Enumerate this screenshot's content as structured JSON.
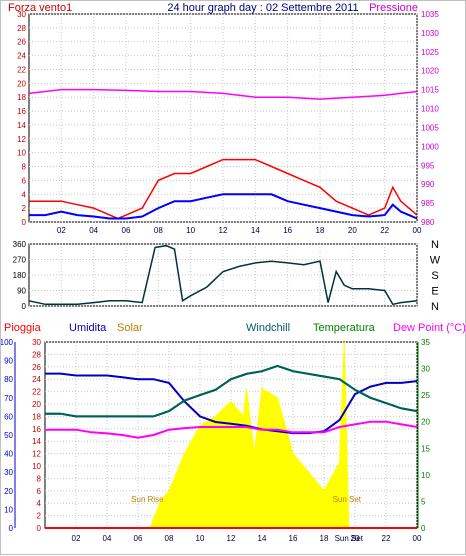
{
  "header": {
    "title": "24 hour graph day : 02 Settembre 2011",
    "left_label": "Forza vento1",
    "right_label": "Pressione"
  },
  "legend": {
    "pioggia": "Pioggia",
    "umidita": "Umidita",
    "solar": "Solar",
    "windchill": "Windchill",
    "temperatura": "Temperatura",
    "dewpoint": "Dew Point (°C)"
  },
  "direction_labels": [
    "N",
    "W",
    "S",
    "E",
    "N"
  ],
  "colors": {
    "wind_gust": "#ff0000",
    "wind_avg": "#0000ff",
    "pressure": "#ff00ff",
    "direction": "#003333",
    "pioggia": "#ff0000",
    "umidita": "#0000c0",
    "solar": "#ffff00",
    "solar_text": "#c08000",
    "windchill": "#006060",
    "temperatura": "#008000",
    "dewpoint": "#ff00ff",
    "axis_left": "#cc0000",
    "axis_right": "#cc00cc",
    "axis_hum": "#0000cc",
    "axis_temp": "#008000"
  },
  "chart_data": [
    {
      "type": "line",
      "title": "24 hour graph day : 02 Settembre 2011",
      "xlabel": "",
      "x_ticks": [
        "02",
        "04",
        "06",
        "08",
        "10",
        "12",
        "14",
        "16",
        "18",
        "20",
        "22",
        "00"
      ],
      "ylabel_left": "Forza vento1",
      "ylabel_right": "Pressione",
      "ylim_left": [
        0,
        30
      ],
      "ylim_right": [
        980,
        1035
      ],
      "yticks_left": [
        0,
        2,
        4,
        6,
        8,
        10,
        12,
        14,
        16,
        18,
        20,
        22,
        24,
        26,
        28,
        30
      ],
      "yticks_right": [
        980,
        985,
        990,
        995,
        1000,
        1005,
        1010,
        1015,
        1020,
        1025,
        1030,
        1035
      ],
      "grid": true,
      "series": [
        {
          "axis": "left",
          "values": [
            [
              0,
              3
            ],
            [
              1,
              3
            ],
            [
              2,
              3
            ],
            [
              3,
              2.5
            ],
            [
              4,
              2
            ],
            [
              5,
              1
            ],
            [
              5.5,
              0.5
            ],
            [
              6,
              1
            ],
            [
              7,
              2
            ],
            [
              7.5,
              4
            ],
            [
              8,
              6
            ],
            [
              9,
              7
            ],
            [
              10,
              7
            ],
            [
              11,
              8
            ],
            [
              12,
              9
            ],
            [
              13,
              9
            ],
            [
              14,
              9
            ],
            [
              15,
              8
            ],
            [
              16,
              7
            ],
            [
              17,
              6
            ],
            [
              18,
              5
            ],
            [
              19,
              3
            ],
            [
              20,
              2
            ],
            [
              21,
              1
            ],
            [
              22,
              2
            ],
            [
              22.5,
              5
            ],
            [
              23,
              3
            ],
            [
              24,
              1
            ]
          ]
        },
        {
          "axis": "left",
          "values": [
            [
              0,
              1
            ],
            [
              1,
              1
            ],
            [
              2,
              1.5
            ],
            [
              3,
              1
            ],
            [
              4,
              0.8
            ],
            [
              5,
              0.5
            ],
            [
              6,
              0.5
            ],
            [
              7,
              0.8
            ],
            [
              8,
              2
            ],
            [
              9,
              3
            ],
            [
              10,
              3
            ],
            [
              11,
              3.5
            ],
            [
              12,
              4
            ],
            [
              13,
              4
            ],
            [
              14,
              4
            ],
            [
              15,
              4
            ],
            [
              16,
              3
            ],
            [
              17,
              2.5
            ],
            [
              18,
              2
            ],
            [
              19,
              1.5
            ],
            [
              20,
              1
            ],
            [
              21,
              0.8
            ],
            [
              22,
              1
            ],
            [
              22.5,
              2.5
            ],
            [
              23,
              1.5
            ],
            [
              24,
              0.5
            ]
          ]
        },
        {
          "axis": "right",
          "values": [
            [
              0,
              1014
            ],
            [
              2,
              1015
            ],
            [
              4,
              1015
            ],
            [
              6,
              1014.8
            ],
            [
              8,
              1014.5
            ],
            [
              10,
              1014.5
            ],
            [
              12,
              1014
            ],
            [
              14,
              1013
            ],
            [
              16,
              1013
            ],
            [
              18,
              1012.5
            ],
            [
              20,
              1013
            ],
            [
              22,
              1013.5
            ],
            [
              24,
              1014.5
            ]
          ]
        }
      ]
    },
    {
      "type": "line",
      "x_ticks": [
        "02",
        "04",
        "06",
        "08",
        "10",
        "12",
        "14",
        "16",
        "18",
        "20",
        "22",
        "00"
      ],
      "ylim": [
        0,
        360
      ],
      "yticks": [
        0,
        90,
        180,
        270,
        360
      ],
      "right_labels": [
        "N",
        "W",
        "S",
        "E",
        "N"
      ],
      "grid": true,
      "series": [
        {
          "values": [
            [
              0,
              30
            ],
            [
              1,
              10
            ],
            [
              2,
              10
            ],
            [
              3,
              10
            ],
            [
              4,
              20
            ],
            [
              5,
              30
            ],
            [
              6,
              30
            ],
            [
              7,
              20
            ],
            [
              7.8,
              340
            ],
            [
              8.5,
              350
            ],
            [
              9,
              330
            ],
            [
              9.5,
              30
            ],
            [
              10,
              60
            ],
            [
              11,
              110
            ],
            [
              12,
              200
            ],
            [
              13,
              230
            ],
            [
              14,
              250
            ],
            [
              15,
              260
            ],
            [
              16,
              250
            ],
            [
              17,
              240
            ],
            [
              18,
              260
            ],
            [
              18.5,
              20
            ],
            [
              19,
              200
            ],
            [
              19.5,
              120
            ],
            [
              20,
              100
            ],
            [
              21,
              100
            ],
            [
              22,
              90
            ],
            [
              22.5,
              10
            ],
            [
              23,
              20
            ],
            [
              24,
              30
            ]
          ]
        }
      ]
    },
    {
      "type": "line",
      "x_ticks": [
        "02",
        "04",
        "06",
        "08",
        "10",
        "12",
        "14",
        "16",
        "18",
        "20",
        "Sun Set",
        "22",
        "00"
      ],
      "yticks_pioggia": [
        0,
        2,
        4,
        6,
        8,
        10,
        12,
        14,
        16,
        18,
        20,
        22,
        24,
        26,
        28,
        30
      ],
      "yticks_umidita": [
        0,
        10,
        20,
        30,
        40,
        50,
        60,
        70,
        80,
        90,
        100
      ],
      "yticks_temperatura": [
        0,
        5,
        10,
        15,
        20,
        25,
        30,
        35
      ],
      "ylim_pioggia": [
        0,
        30
      ],
      "ylim_umidita": [
        0,
        100
      ],
      "ylim_temperatura": [
        0,
        35
      ],
      "annotations": [
        "Sun Rise",
        "Sun Set"
      ],
      "sunrise_hour": 6.8,
      "sunset_hour": 19.6,
      "series": [
        {
          "name": "Pioggia",
          "axis": "pioggia",
          "values": [
            [
              0,
              0
            ],
            [
              24,
              0
            ]
          ]
        },
        {
          "name": "Umidita",
          "axis": "umidita",
          "values": [
            [
              0,
              83
            ],
            [
              1,
              83
            ],
            [
              2,
              82
            ],
            [
              3,
              82
            ],
            [
              4,
              82
            ],
            [
              5,
              81
            ],
            [
              6,
              80
            ],
            [
              7,
              80
            ],
            [
              8,
              78
            ],
            [
              9,
              68
            ],
            [
              10,
              60
            ],
            [
              11,
              57
            ],
            [
              12,
              56
            ],
            [
              13,
              55
            ],
            [
              14,
              53
            ],
            [
              15,
              52
            ],
            [
              16,
              51
            ],
            [
              17,
              51
            ],
            [
              18,
              52
            ],
            [
              19,
              58
            ],
            [
              20,
              72
            ],
            [
              21,
              76
            ],
            [
              22,
              78
            ],
            [
              23,
              78
            ],
            [
              24,
              79
            ]
          ]
        },
        {
          "name": "Solar",
          "axis": "umidita",
          "values": [
            [
              6.8,
              0
            ],
            [
              7,
              5
            ],
            [
              7.5,
              15
            ],
            [
              8,
              20
            ],
            [
              8.5,
              30
            ],
            [
              9,
              40
            ],
            [
              10,
              55
            ],
            [
              11,
              60
            ],
            [
              12,
              68
            ],
            [
              12.8,
              60
            ],
            [
              13,
              75
            ],
            [
              13.5,
              40
            ],
            [
              14,
              75
            ],
            [
              15,
              70
            ],
            [
              16,
              40
            ],
            [
              17,
              30
            ],
            [
              18,
              20
            ],
            [
              19,
              35
            ],
            [
              19.3,
              100
            ],
            [
              19.6,
              0
            ]
          ]
        },
        {
          "name": "Temperatura",
          "axis": "temperatura",
          "values": [
            [
              0,
              21.5
            ],
            [
              1,
              21.5
            ],
            [
              2,
              21
            ],
            [
              3,
              21
            ],
            [
              4,
              21
            ],
            [
              5,
              21
            ],
            [
              6,
              21
            ],
            [
              7,
              21
            ],
            [
              8,
              22
            ],
            [
              9,
              24
            ],
            [
              10,
              25
            ],
            [
              11,
              26
            ],
            [
              12,
              28
            ],
            [
              13,
              29
            ],
            [
              14,
              29.5
            ],
            [
              15,
              30.5
            ],
            [
              16,
              29.5
            ],
            [
              17,
              29
            ],
            [
              18,
              28.5
            ],
            [
              19,
              28
            ],
            [
              20,
              26
            ],
            [
              21,
              24.5
            ],
            [
              22,
              23.5
            ],
            [
              23,
              22.5
            ],
            [
              24,
              22
            ]
          ]
        },
        {
          "name": "Windchill",
          "axis": "temperatura",
          "values": [
            [
              0,
              21.5
            ],
            [
              1,
              21.5
            ],
            [
              2,
              21
            ],
            [
              3,
              21
            ],
            [
              4,
              21
            ],
            [
              5,
              21
            ],
            [
              6,
              21
            ],
            [
              7,
              21
            ],
            [
              8,
              22
            ],
            [
              9,
              24
            ],
            [
              10,
              25
            ],
            [
              11,
              26
            ],
            [
              12,
              28
            ],
            [
              13,
              29
            ],
            [
              14,
              29.5
            ],
            [
              15,
              30.5
            ],
            [
              16,
              29.5
            ],
            [
              17,
              29
            ],
            [
              18,
              28.5
            ],
            [
              19,
              28
            ],
            [
              20,
              26
            ],
            [
              21,
              24.5
            ],
            [
              22,
              23.5
            ],
            [
              23,
              22.5
            ],
            [
              24,
              22
            ]
          ]
        },
        {
          "name": "Dew Point (°C)",
          "axis": "temperatura",
          "values": [
            [
              0,
              18.5
            ],
            [
              1,
              18.5
            ],
            [
              2,
              18.5
            ],
            [
              3,
              18
            ],
            [
              4,
              17.8
            ],
            [
              5,
              17.5
            ],
            [
              6,
              17
            ],
            [
              7,
              17.5
            ],
            [
              8,
              18.5
            ],
            [
              9,
              18.8
            ],
            [
              10,
              19
            ],
            [
              11,
              19
            ],
            [
              12,
              19
            ],
            [
              13,
              19
            ],
            [
              14,
              18.5
            ],
            [
              15,
              18.5
            ],
            [
              16,
              18
            ],
            [
              17,
              18
            ],
            [
              18,
              18
            ],
            [
              19,
              19
            ],
            [
              20,
              19.5
            ],
            [
              21,
              20
            ],
            [
              22,
              20
            ],
            [
              23,
              19.5
            ],
            [
              24,
              19
            ]
          ]
        }
      ]
    }
  ]
}
